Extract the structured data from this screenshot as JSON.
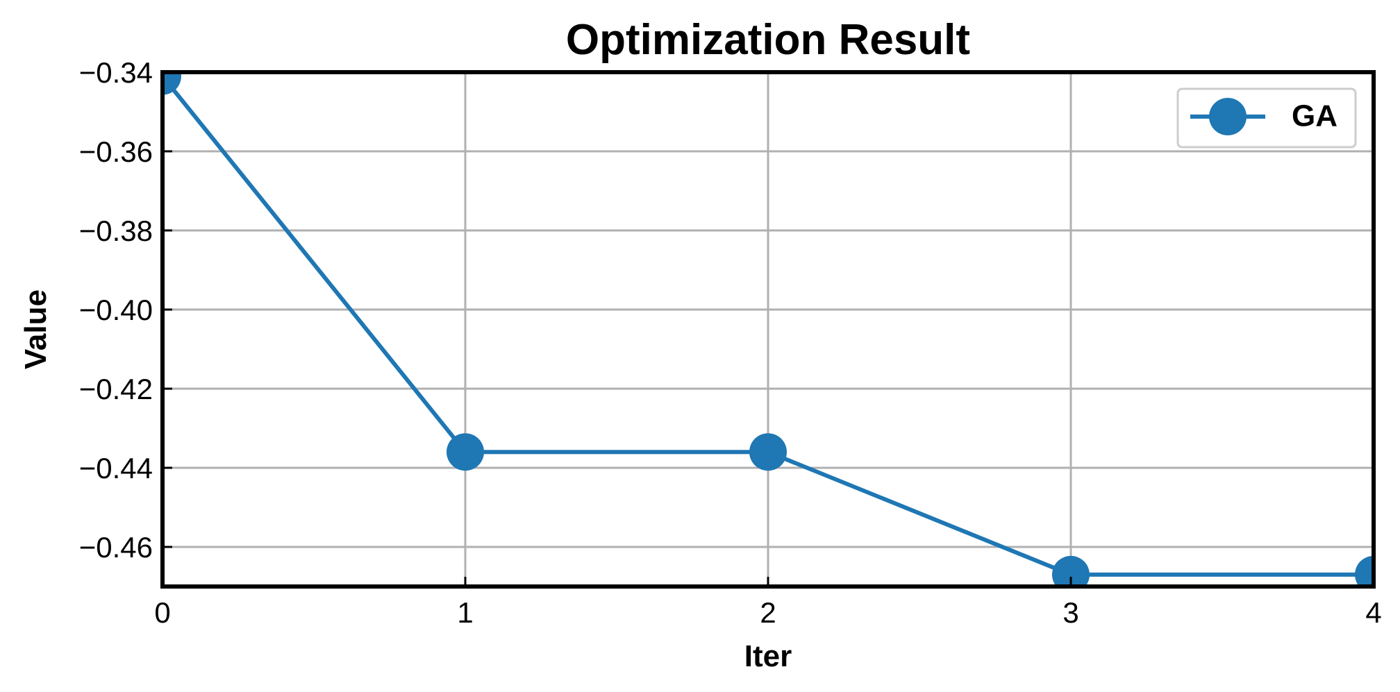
{
  "chart_data": {
    "type": "line",
    "title": "Optimization Result",
    "xlabel": "Iter",
    "ylabel": "Value",
    "x": [
      0,
      1,
      2,
      3,
      4
    ],
    "xlim": [
      0,
      4
    ],
    "ylim": [
      -0.47,
      -0.34
    ],
    "xticks": [
      0,
      1,
      2,
      3,
      4
    ],
    "yticks": [
      -0.34,
      -0.36,
      -0.38,
      -0.4,
      -0.42,
      -0.44,
      -0.46
    ],
    "xtick_labels": [
      "0",
      "1",
      "2",
      "3",
      "4"
    ],
    "ytick_labels": [
      "−0.34",
      "−0.36",
      "−0.38",
      "−0.40",
      "−0.42",
      "−0.44",
      "−0.46"
    ],
    "grid": true,
    "legend_position": "top-right",
    "series": [
      {
        "name": "GA",
        "color": "#1f77b4",
        "marker": "circle",
        "values": [
          -0.341,
          -0.436,
          -0.436,
          -0.467,
          -0.467
        ]
      }
    ]
  }
}
